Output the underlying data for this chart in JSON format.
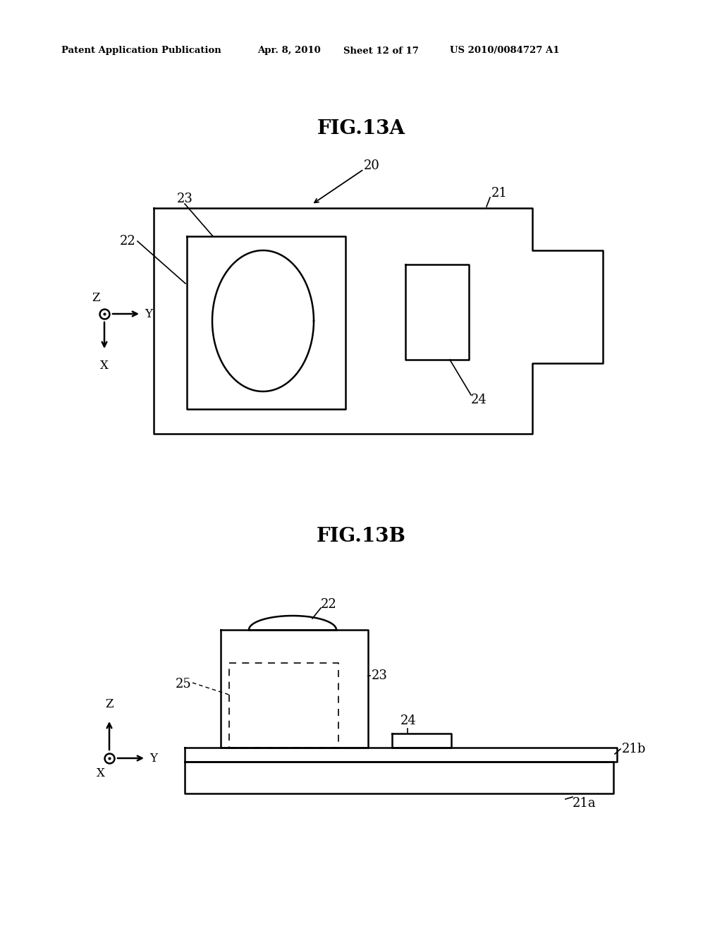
{
  "bg_color": "#ffffff",
  "header_text": "Patent Application Publication",
  "header_date": "Apr. 8, 2010",
  "header_sheet": "Sheet 12 of 17",
  "header_patent": "US 2010/0084727 A1",
  "fig13a_title": "FIG.13A",
  "fig13b_title": "FIG.13B",
  "line_color": "#000000",
  "line_width": 1.8,
  "lw_thin": 1.2
}
